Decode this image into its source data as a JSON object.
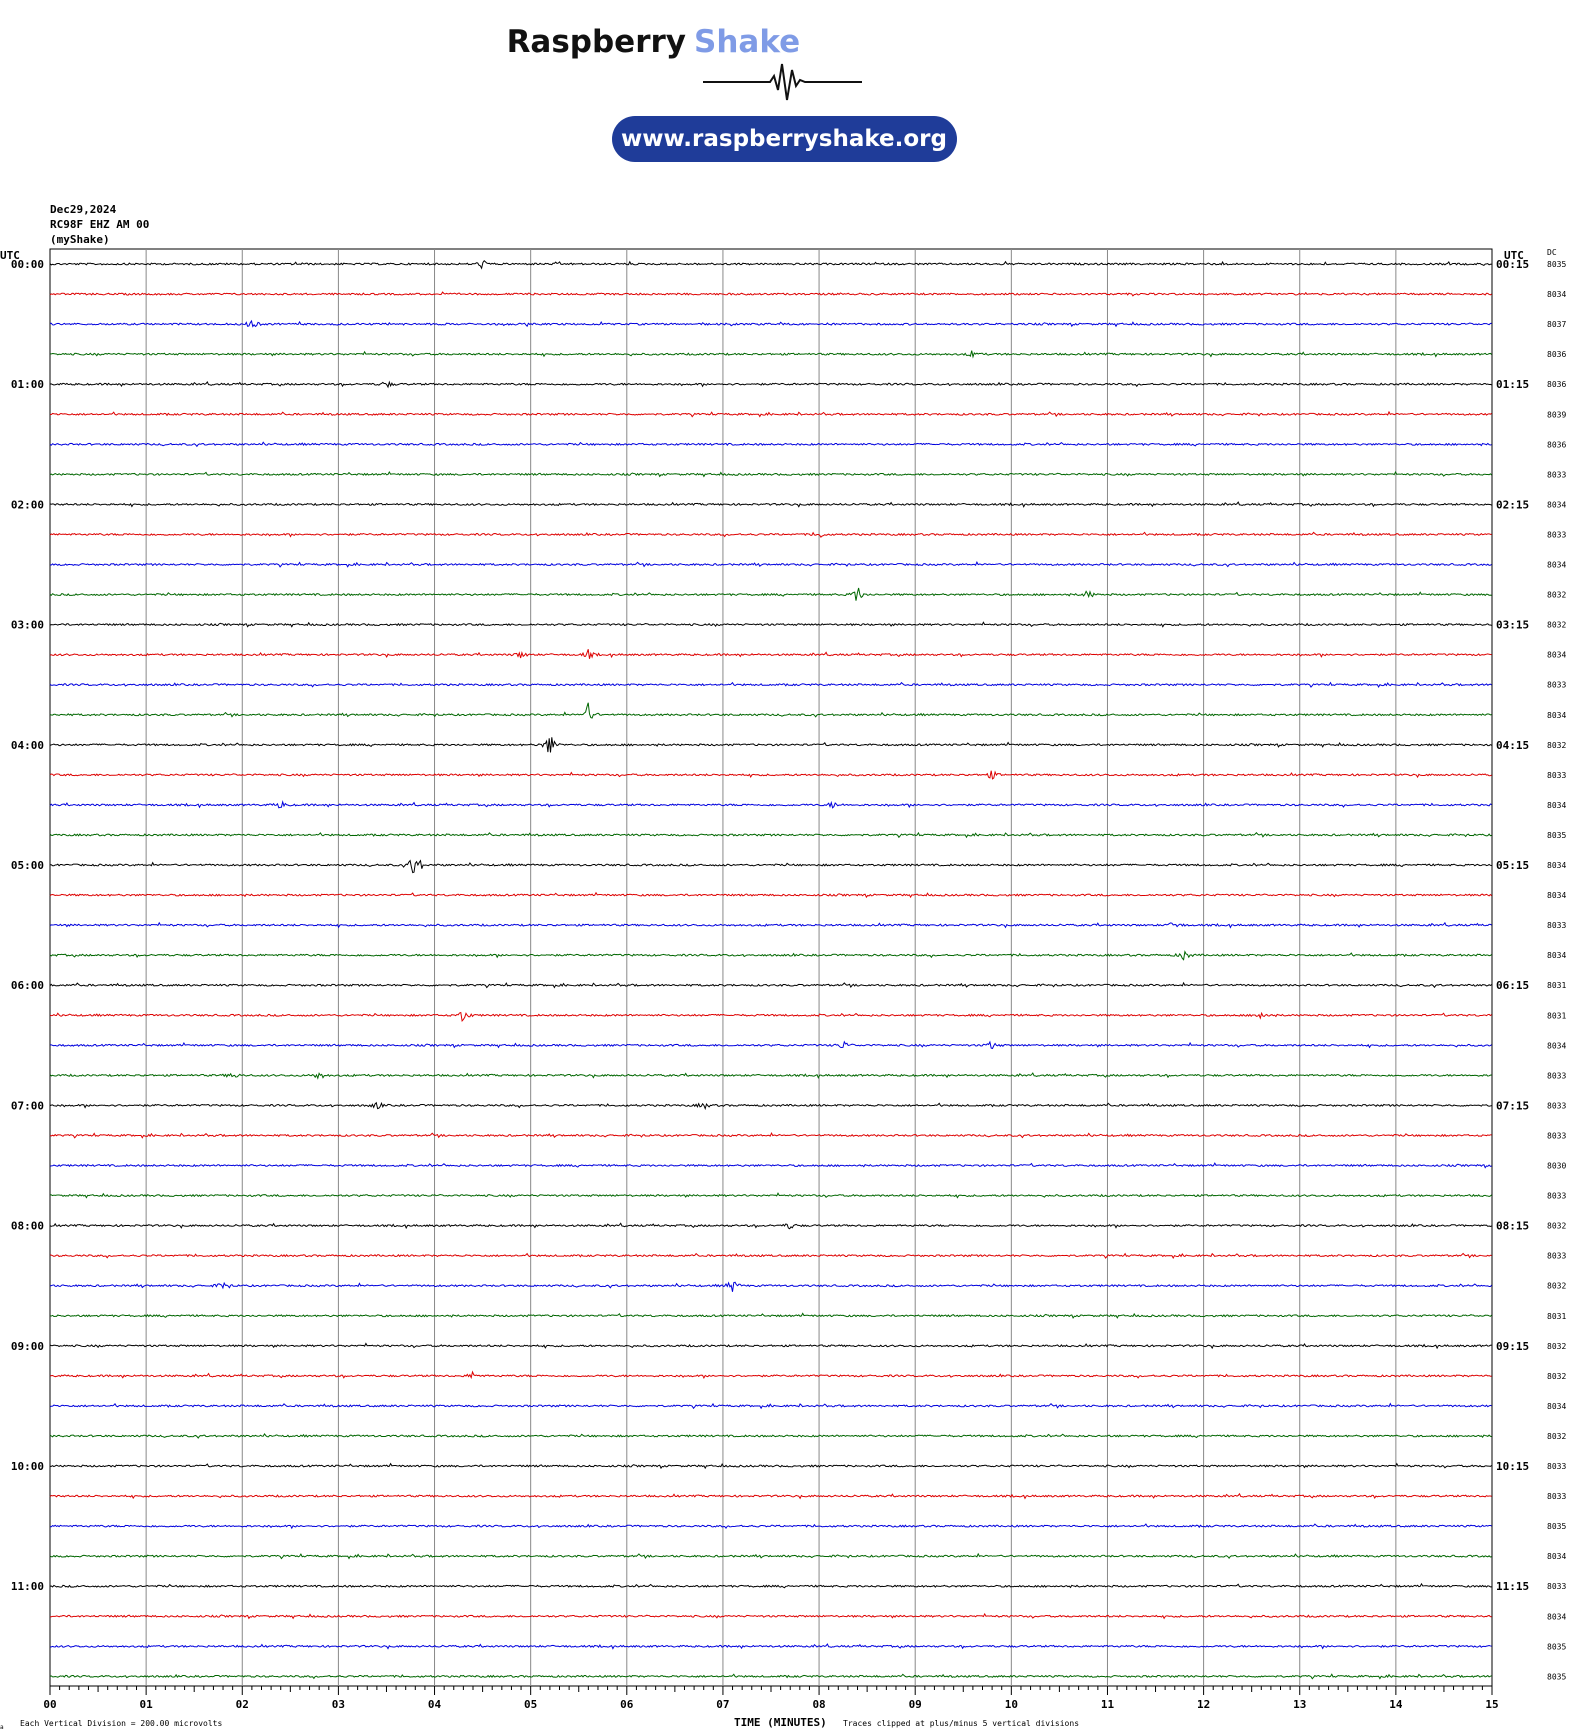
{
  "header": {
    "brand_word_1": "Raspberry",
    "brand_word_2": "Shake",
    "website": "www.raspberryshake.org",
    "brand_color_dark": "#111111",
    "brand_color_light": "#7f9be6",
    "pill_color": "#1f3c99"
  },
  "station": {
    "date": "Dec29,2024",
    "channel": "RC98F EHZ AM 00",
    "network": "(myShake)"
  },
  "chart_data": {
    "type": "line",
    "subtype": "helicorder",
    "x": [
      0,
      1,
      2,
      3,
      4,
      5,
      6,
      7,
      8,
      9,
      10,
      11,
      12,
      13,
      14,
      15
    ],
    "tick_labels": [
      "00",
      "01",
      "02",
      "03",
      "04",
      "05",
      "06",
      "07",
      "08",
      "09",
      "10",
      "11",
      "12",
      "13",
      "14",
      "15"
    ],
    "xlabel": "TIME (MINUTES)",
    "xlim": [
      0,
      15
    ],
    "left_axis_title": "UTC",
    "right_axis_title": "UTC",
    "dc_title": "DC",
    "left_labels": [
      "00:00",
      "01:00",
      "02:00",
      "03:00",
      "04:00",
      "05:00",
      "06:00",
      "07:00",
      "08:00",
      "09:00",
      "10:00",
      "11:00"
    ],
    "right_labels": [
      "00:15",
      "01:15",
      "02:15",
      "03:15",
      "04:15",
      "05:15",
      "06:15",
      "07:15",
      "08:15",
      "09:15",
      "10:15",
      "11:15"
    ],
    "dc_values": [
      "8035",
      "8034",
      "8037",
      "8036",
      "8036",
      "8039",
      "8036",
      "8033",
      "8034",
      "8033",
      "8034",
      "8032",
      "8032",
      "8034",
      "8033",
      "8034",
      "8032",
      "8033",
      "8034",
      "8035",
      "8034",
      "8034",
      "8033",
      "8034",
      "8031",
      "8031",
      "8034",
      "8033",
      "8033",
      "8033",
      "8030",
      "8033",
      "8032",
      "8033",
      "8032",
      "8031",
      "8032",
      "8032",
      "8034",
      "8032",
      "8033",
      "8033",
      "8035",
      "8034",
      "8033",
      "8034",
      "8035",
      "8035"
    ],
    "trace_colors": [
      "#000000",
      "#dd0000",
      "#0000dd",
      "#006600"
    ],
    "grid": true,
    "footer_left": "Each Vertical Division =  200.00 microvolts",
    "footer_right": "Traces clipped at plus/minus 5 vertical divisions",
    "events": [
      {
        "line": 0,
        "minute": 4.5,
        "amp": 5
      },
      {
        "line": 2,
        "minute": 2.1,
        "amp": 6
      },
      {
        "line": 3,
        "minute": 9.6,
        "amp": 4
      },
      {
        "line": 4,
        "minute": 3.5,
        "amp": 4
      },
      {
        "line": 9,
        "minute": 8.0,
        "amp": 4
      },
      {
        "line": 11,
        "minute": 8.4,
        "amp": 10
      },
      {
        "line": 11,
        "minute": 10.8,
        "amp": 5
      },
      {
        "line": 13,
        "minute": 4.9,
        "amp": 4
      },
      {
        "line": 13,
        "minute": 5.6,
        "amp": 5
      },
      {
        "line": 15,
        "minute": 5.6,
        "amp": 12
      },
      {
        "line": 16,
        "minute": 5.2,
        "amp": 14
      },
      {
        "line": 17,
        "minute": 9.8,
        "amp": 5
      },
      {
        "line": 18,
        "minute": 2.4,
        "amp": 5
      },
      {
        "line": 18,
        "minute": 8.15,
        "amp": 4
      },
      {
        "line": 20,
        "minute": 3.8,
        "amp": 22
      },
      {
        "line": 22,
        "minute": 11.7,
        "amp": 5
      },
      {
        "line": 23,
        "minute": 11.8,
        "amp": 6
      },
      {
        "line": 25,
        "minute": 4.3,
        "amp": 8
      },
      {
        "line": 25,
        "minute": 12.6,
        "amp": 5
      },
      {
        "line": 26,
        "minute": 8.25,
        "amp": 5
      },
      {
        "line": 26,
        "minute": 9.8,
        "amp": 5
      },
      {
        "line": 27,
        "minute": 1.9,
        "amp": 4
      },
      {
        "line": 27,
        "minute": 2.8,
        "amp": 5
      },
      {
        "line": 28,
        "minute": 3.4,
        "amp": 4
      },
      {
        "line": 28,
        "minute": 6.8,
        "amp": 4
      },
      {
        "line": 32,
        "minute": 7.7,
        "amp": 4
      },
      {
        "line": 34,
        "minute": 1.8,
        "amp": 5
      },
      {
        "line": 34,
        "minute": 7.1,
        "amp": 7
      },
      {
        "line": 37,
        "minute": 4.4,
        "amp": 4
      }
    ]
  }
}
